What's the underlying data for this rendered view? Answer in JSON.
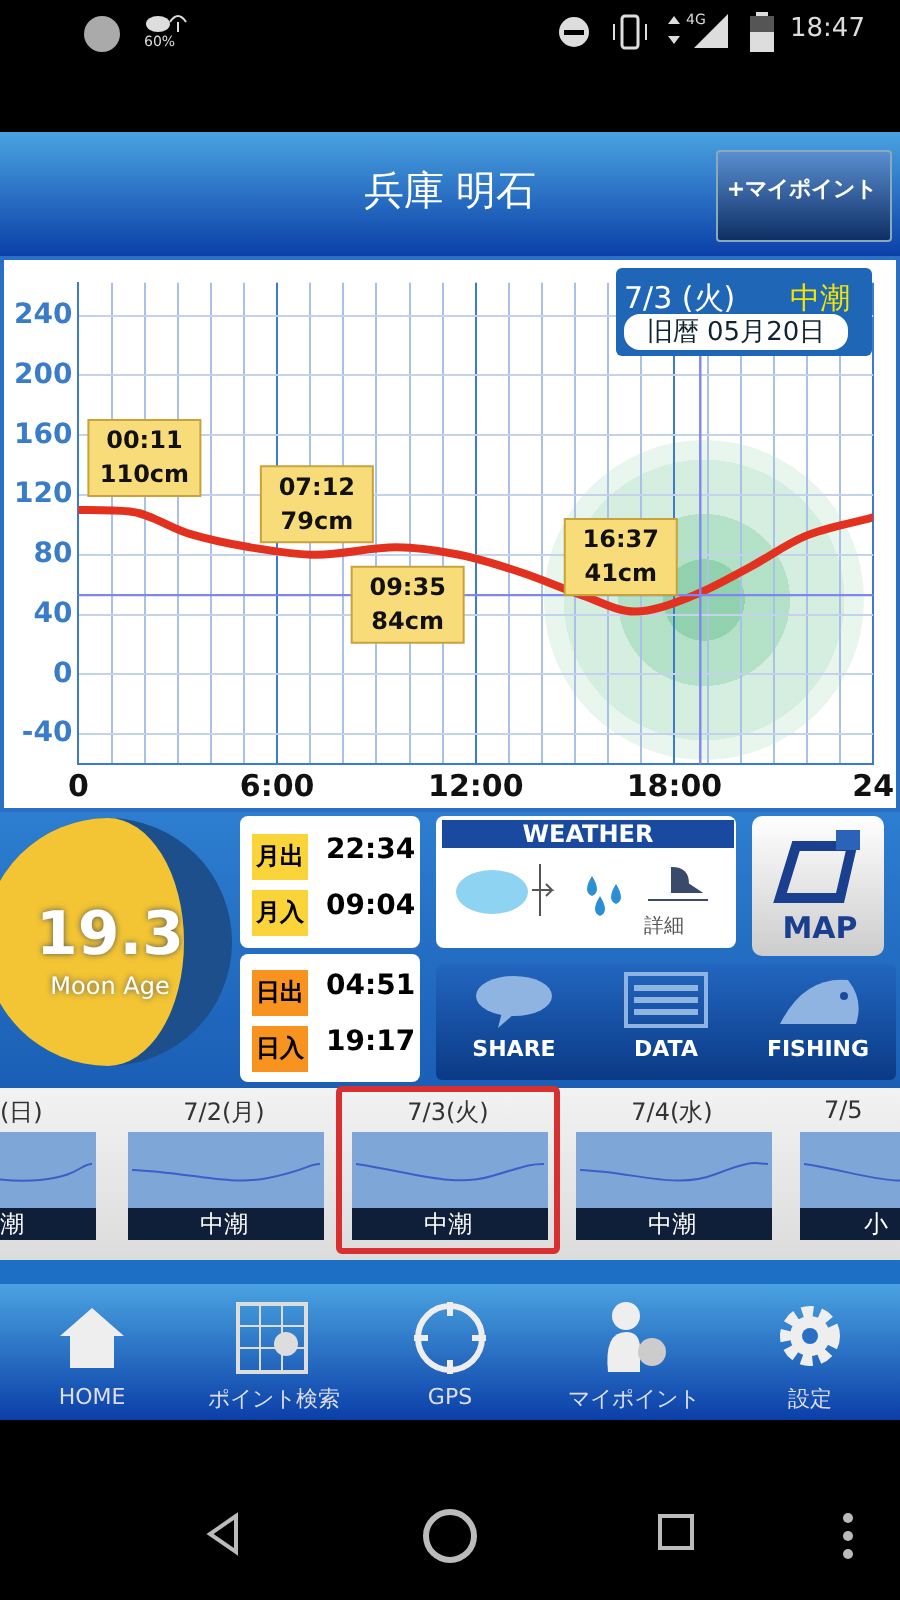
{
  "chart_data": {
    "type": "line",
    "title": "兵庫 明石",
    "x": [
      0,
      1.55,
      3.36,
      5.18,
      7.2,
      9.6,
      11.5,
      13.4,
      15.2,
      16.8,
      18.6,
      20.3,
      21.9,
      24
    ],
    "series": [
      {
        "color": "#e2321f",
        "values": [
          110,
          109,
          94,
          85,
          80,
          85,
          80,
          68,
          53,
          42,
          53,
          72,
          92,
          105
        ]
      }
    ],
    "xlim": [
      0,
      24
    ],
    "xticks": [
      0,
      {
        "value": 1,
        "label": null
      },
      {
        "value": 2,
        "label": null
      },
      {
        "value": 3,
        "label": null
      },
      {
        "value": 4,
        "label": null
      },
      {
        "value": 5,
        "label": null
      },
      {
        "value": 6,
        "label": "6:00"
      },
      {
        "value": 7,
        "label": null
      },
      {
        "value": 8,
        "label": null
      },
      {
        "value": 9,
        "label": null
      },
      {
        "value": 10,
        "label": null
      },
      {
        "value": 11,
        "label": null
      },
      {
        "value": 12,
        "label": "12:00"
      },
      {
        "value": 13,
        "label": null
      },
      {
        "value": 14,
        "label": null
      },
      {
        "value": 15,
        "label": null
      },
      {
        "value": 16,
        "label": null
      },
      {
        "value": 17,
        "label": null
      },
      {
        "value": 18,
        "label": "18:00"
      },
      {
        "value": 19,
        "label": null
      },
      {
        "value": 20,
        "label": null
      },
      {
        "value": 21,
        "label": null
      },
      {
        "value": 22,
        "label": null
      },
      {
        "value": 23,
        "label": null
      },
      24
    ],
    "ylim": [
      -60,
      262
    ],
    "yticks": [
      -40,
      0,
      40,
      80,
      120,
      160,
      200,
      240
    ],
    "grid": true,
    "legend": false,
    "marker": "none",
    "line_style": "solid",
    "ref_lines": [
      {
        "axis": "x",
        "value": 18.78,
        "color": "#7f86f0"
      },
      {
        "axis": "y",
        "value": 53,
        "color": "#7f86f0"
      }
    ],
    "annotations": [
      {
        "text": "00:11\n110cm",
        "x": 0.18,
        "y": 110
      },
      {
        "text": "07:12\n79cm",
        "x": 7.2,
        "y": 79
      },
      {
        "text": "09:35\n84cm",
        "x": 9.58,
        "y": 84
      },
      {
        "text": "16:37\n41cm",
        "x": 16.62,
        "y": 41
      },
      "7/3 (火)",
      "中潮",
      "旧暦 05月20日",
      "+マイポイント",
      "19.3",
      "Moon Age",
      "月出",
      "22:34",
      "月入",
      "09:04",
      "日出",
      "04:51",
      "日入",
      "19:17",
      "WEATHER",
      "詳細",
      "MAP",
      "SHARE",
      "DATA",
      "FISHING",
      "(日)",
      "7/2(月)",
      "7/3(火)",
      "7/4(水)",
      "7/5",
      "潮",
      "中潮",
      "中潮",
      "中潮",
      "小",
      "HOME",
      "ポイント検索",
      "GPS",
      "マイポイント",
      "設定",
      "60%",
      "4G",
      "18:47"
    ]
  }
}
